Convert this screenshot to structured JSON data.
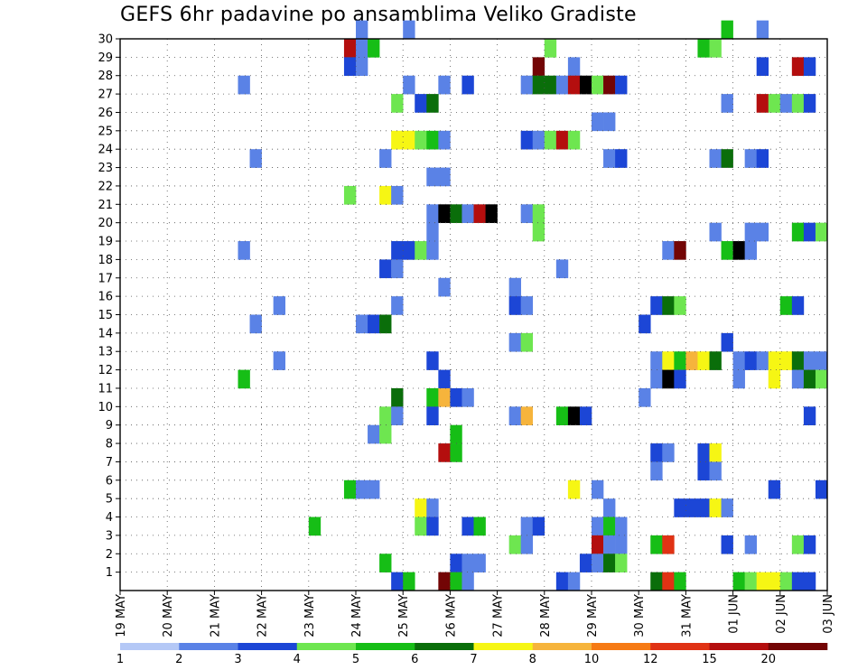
{
  "chart_data": {
    "type": "heatmap",
    "title": "GEFS 6hr padavine po ansamblima Veliko Gradiste",
    "xlabel": "",
    "ylabel": "",
    "x_ticks": [
      "19 MAY",
      "20 MAY",
      "21 MAY",
      "22 MAY",
      "23 MAY",
      "24 MAY",
      "25 MAY",
      "26 MAY",
      "27 MAY",
      "28 MAY",
      "29 MAY",
      "30 MAY",
      "31 MAY",
      "01 JUN",
      "02 JUN",
      "03 JUN"
    ],
    "y_ticks": [
      "1",
      "2",
      "3",
      "4",
      "5",
      "6",
      "7",
      "8",
      "9",
      "10",
      "11",
      "12",
      "13",
      "14",
      "15",
      "16",
      "17",
      "18",
      "19",
      "20",
      "21",
      "22",
      "23",
      "24",
      "25",
      "26",
      "27",
      "28",
      "29",
      "30"
    ],
    "x_range": [
      0,
      60
    ],
    "y_range": [
      0,
      30
    ],
    "step_per_day": 4,
    "grid": true,
    "colorbar": {
      "levels": [
        "1",
        "2",
        "3",
        "4",
        "5",
        "6",
        "7",
        "8",
        "10",
        "12",
        "15",
        "20"
      ],
      "colors": [
        "#b4c8f6",
        "#5a82e6",
        "#1c46d6",
        "#6ee650",
        "#16be16",
        "#0a6e0a",
        "#f6f614",
        "#f6b43c",
        "#f67a14",
        "#e03214",
        "#b40e0e",
        "#730505"
      ]
    },
    "cells": [
      [
        20,
        30,
        1
      ],
      [
        24,
        30,
        1
      ],
      [
        51,
        30,
        4
      ],
      [
        54,
        30,
        1
      ],
      [
        19,
        29,
        10
      ],
      [
        20,
        29,
        1
      ],
      [
        21,
        29,
        4
      ],
      [
        36,
        29,
        3
      ],
      [
        49,
        29,
        4
      ],
      [
        50,
        29,
        3
      ],
      [
        19,
        28,
        2
      ],
      [
        20,
        28,
        1
      ],
      [
        35,
        28,
        11
      ],
      [
        38,
        28,
        1
      ],
      [
        54,
        28,
        2
      ],
      [
        57,
        28,
        10
      ],
      [
        58,
        28,
        2
      ],
      [
        10,
        27,
        1
      ],
      [
        24,
        27,
        1
      ],
      [
        27,
        27,
        1
      ],
      [
        29,
        27,
        2
      ],
      [
        34,
        27,
        1
      ],
      [
        35,
        27,
        5
      ],
      [
        36,
        27,
        5
      ],
      [
        37,
        27,
        1
      ],
      [
        38,
        27,
        10
      ],
      [
        39,
        27,
        13
      ],
      [
        40,
        27,
        3
      ],
      [
        41,
        27,
        11
      ],
      [
        42,
        27,
        2
      ],
      [
        23,
        26,
        3
      ],
      [
        25,
        26,
        2
      ],
      [
        26,
        26,
        5
      ],
      [
        51,
        26,
        1
      ],
      [
        54,
        26,
        10
      ],
      [
        55,
        26,
        3
      ],
      [
        56,
        26,
        1
      ],
      [
        57,
        26,
        3
      ],
      [
        58,
        26,
        2
      ],
      [
        40,
        25,
        1
      ],
      [
        41,
        25,
        1
      ],
      [
        23,
        24,
        6
      ],
      [
        24,
        24,
        6
      ],
      [
        25,
        24,
        3
      ],
      [
        26,
        24,
        4
      ],
      [
        27,
        24,
        1
      ],
      [
        34,
        24,
        2
      ],
      [
        35,
        24,
        1
      ],
      [
        36,
        24,
        3
      ],
      [
        37,
        24,
        10
      ],
      [
        38,
        24,
        3
      ],
      [
        11,
        23,
        1
      ],
      [
        22,
        23,
        1
      ],
      [
        41,
        23,
        1
      ],
      [
        42,
        23,
        2
      ],
      [
        50,
        23,
        1
      ],
      [
        51,
        23,
        5
      ],
      [
        53,
        23,
        1
      ],
      [
        54,
        23,
        2
      ],
      [
        26,
        22,
        1
      ],
      [
        27,
        22,
        1
      ],
      [
        19,
        21,
        3
      ],
      [
        22,
        21,
        6
      ],
      [
        23,
        21,
        1
      ],
      [
        26,
        20,
        1
      ],
      [
        27,
        20,
        13
      ],
      [
        28,
        20,
        5
      ],
      [
        29,
        20,
        1
      ],
      [
        30,
        20,
        10
      ],
      [
        31,
        20,
        14
      ],
      [
        34,
        20,
        1
      ],
      [
        35,
        20,
        3
      ],
      [
        26,
        19,
        1
      ],
      [
        35,
        19,
        3
      ],
      [
        50,
        19,
        1
      ],
      [
        53,
        19,
        1
      ],
      [
        54,
        19,
        1
      ],
      [
        57,
        19,
        4
      ],
      [
        58,
        19,
        2
      ],
      [
        59,
        19,
        3
      ],
      [
        10,
        18,
        1
      ],
      [
        23,
        18,
        2
      ],
      [
        24,
        18,
        2
      ],
      [
        25,
        18,
        3
      ],
      [
        26,
        18,
        1
      ],
      [
        46,
        18,
        1
      ],
      [
        47,
        18,
        11
      ],
      [
        51,
        18,
        4
      ],
      [
        52,
        18,
        13
      ],
      [
        53,
        18,
        1
      ],
      [
        22,
        17,
        2
      ],
      [
        23,
        17,
        1
      ],
      [
        37,
        17,
        1
      ],
      [
        27,
        16,
        1
      ],
      [
        33,
        16,
        1
      ],
      [
        13,
        15,
        1
      ],
      [
        23,
        15,
        1
      ],
      [
        33,
        15,
        2
      ],
      [
        34,
        15,
        1
      ],
      [
        45,
        15,
        2
      ],
      [
        46,
        15,
        5
      ],
      [
        47,
        15,
        3
      ],
      [
        56,
        15,
        4
      ],
      [
        57,
        15,
        2
      ],
      [
        11,
        14,
        1
      ],
      [
        20,
        14,
        1
      ],
      [
        21,
        14,
        2
      ],
      [
        22,
        14,
        5
      ],
      [
        44,
        14,
        2
      ],
      [
        33,
        13,
        1
      ],
      [
        34,
        13,
        3
      ],
      [
        51,
        13,
        2
      ],
      [
        13,
        12,
        1
      ],
      [
        26,
        12,
        2
      ],
      [
        45,
        12,
        1
      ],
      [
        46,
        12,
        6
      ],
      [
        47,
        12,
        4
      ],
      [
        48,
        12,
        7
      ],
      [
        49,
        12,
        6
      ],
      [
        50,
        12,
        5
      ],
      [
        52,
        12,
        1
      ],
      [
        53,
        12,
        2
      ],
      [
        54,
        12,
        1
      ],
      [
        55,
        12,
        6
      ],
      [
        56,
        12,
        6
      ],
      [
        57,
        12,
        5
      ],
      [
        58,
        12,
        1
      ],
      [
        59,
        12,
        1
      ],
      [
        10,
        11,
        4
      ],
      [
        27,
        11,
        2
      ],
      [
        45,
        11,
        1
      ],
      [
        46,
        11,
        13
      ],
      [
        47,
        11,
        2
      ],
      [
        52,
        11,
        1
      ],
      [
        55,
        11,
        6
      ],
      [
        57,
        11,
        1
      ],
      [
        58,
        11,
        5
      ],
      [
        59,
        11,
        3
      ],
      [
        23,
        10,
        5
      ],
      [
        26,
        10,
        4
      ],
      [
        27,
        10,
        7
      ],
      [
        28,
        10,
        2
      ],
      [
        29,
        10,
        1
      ],
      [
        44,
        10,
        1
      ],
      [
        22,
        9,
        3
      ],
      [
        23,
        9,
        1
      ],
      [
        26,
        9,
        2
      ],
      [
        33,
        9,
        1
      ],
      [
        34,
        9,
        7
      ],
      [
        37,
        9,
        4
      ],
      [
        38,
        9,
        13
      ],
      [
        39,
        9,
        2
      ],
      [
        58,
        9,
        2
      ],
      [
        21,
        8,
        1
      ],
      [
        22,
        8,
        3
      ],
      [
        28,
        8,
        4
      ],
      [
        27,
        7,
        10
      ],
      [
        28,
        7,
        4
      ],
      [
        45,
        7,
        2
      ],
      [
        46,
        7,
        1
      ],
      [
        49,
        7,
        2
      ],
      [
        50,
        7,
        6
      ],
      [
        45,
        6,
        1
      ],
      [
        49,
        6,
        2
      ],
      [
        50,
        6,
        1
      ],
      [
        19,
        5,
        4
      ],
      [
        20,
        5,
        1
      ],
      [
        21,
        5,
        1
      ],
      [
        38,
        5,
        6
      ],
      [
        40,
        5,
        1
      ],
      [
        55,
        5,
        2
      ],
      [
        59,
        5,
        2
      ],
      [
        25,
        4,
        6
      ],
      [
        26,
        4,
        1
      ],
      [
        41,
        4,
        1
      ],
      [
        47,
        4,
        2
      ],
      [
        48,
        4,
        2
      ],
      [
        49,
        4,
        2
      ],
      [
        50,
        4,
        6
      ],
      [
        51,
        4,
        1
      ],
      [
        16,
        3,
        4
      ],
      [
        25,
        3,
        3
      ],
      [
        26,
        3,
        2
      ],
      [
        29,
        3,
        2
      ],
      [
        30,
        3,
        4
      ],
      [
        34,
        3,
        1
      ],
      [
        35,
        3,
        2
      ],
      [
        40,
        3,
        1
      ],
      [
        41,
        3,
        4
      ],
      [
        42,
        3,
        1
      ],
      [
        33,
        2,
        3
      ],
      [
        34,
        2,
        1
      ],
      [
        40,
        2,
        10
      ],
      [
        41,
        2,
        1
      ],
      [
        42,
        2,
        1
      ],
      [
        45,
        2,
        4
      ],
      [
        46,
        2,
        9
      ],
      [
        51,
        2,
        2
      ],
      [
        53,
        2,
        1
      ],
      [
        57,
        2,
        3
      ],
      [
        58,
        2,
        2
      ],
      [
        22,
        1,
        4
      ],
      [
        28,
        1,
        2
      ],
      [
        29,
        1,
        1
      ],
      [
        30,
        1,
        1
      ],
      [
        39,
        1,
        2
      ],
      [
        40,
        1,
        1
      ],
      [
        41,
        1,
        5
      ],
      [
        42,
        1,
        3
      ],
      [
        23,
        0,
        2
      ],
      [
        24,
        0,
        4
      ],
      [
        27,
        0,
        11
      ],
      [
        28,
        0,
        4
      ],
      [
        29,
        0,
        1
      ],
      [
        37,
        0,
        2
      ],
      [
        38,
        0,
        1
      ],
      [
        45,
        0,
        5
      ],
      [
        46,
        0,
        9
      ],
      [
        47,
        0,
        4
      ],
      [
        52,
        0,
        4
      ],
      [
        53,
        0,
        3
      ],
      [
        54,
        0,
        6
      ],
      [
        55,
        0,
        6
      ],
      [
        56,
        0,
        3
      ],
      [
        57,
        0,
        2
      ],
      [
        58,
        0,
        2
      ]
    ]
  }
}
